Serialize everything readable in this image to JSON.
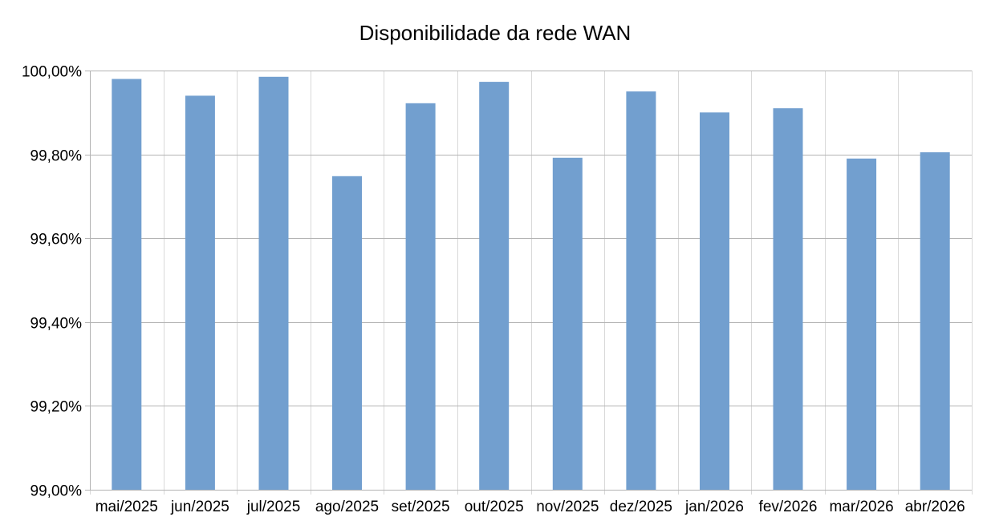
{
  "chart_data": {
    "type": "bar",
    "title": "Disponibilidade da rede WAN",
    "xlabel": "",
    "ylabel": "",
    "categories": [
      "mai/2025",
      "jun/2025",
      "jul/2025",
      "ago/2025",
      "set/2025",
      "out/2025",
      "nov/2025",
      "dez/2025",
      "jan/2026",
      "fev/2026",
      "mar/2026",
      "abr/2026"
    ],
    "values": [
      99.98,
      99.94,
      99.985,
      99.748,
      99.922,
      99.973,
      99.792,
      99.95,
      99.9,
      99.91,
      99.79,
      99.805
    ],
    "ylim": [
      99.0,
      100.0
    ],
    "yticks": [
      99.0,
      99.2,
      99.4,
      99.6,
      99.8,
      100.0
    ],
    "ytick_labels": [
      "99,00%",
      "99,20%",
      "99,40%",
      "99,60%",
      "99,80%",
      "100,00%"
    ],
    "grid": true,
    "legend": "none",
    "bar_color": "#729fcf"
  }
}
